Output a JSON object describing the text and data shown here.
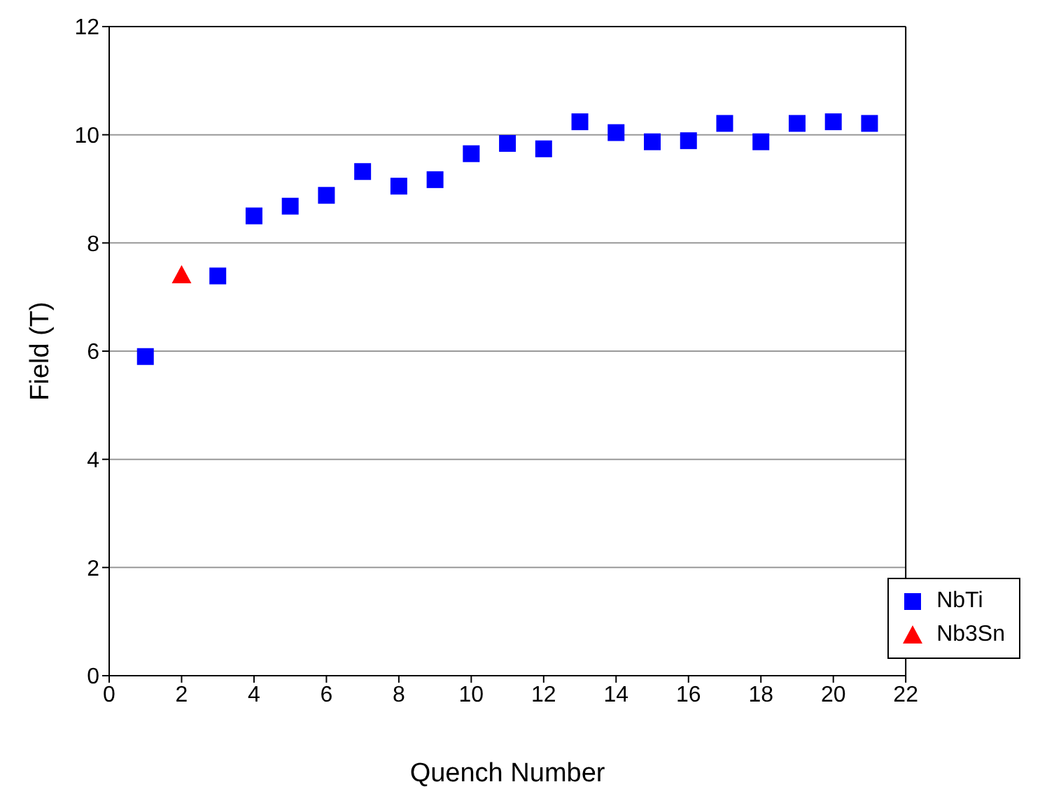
{
  "chart_data": {
    "type": "scatter",
    "xlabel": "Quench Number",
    "ylabel": "Field (T)",
    "xlim": [
      0,
      22
    ],
    "xticks": [
      0,
      2,
      4,
      6,
      8,
      10,
      12,
      14,
      16,
      18,
      20,
      22
    ],
    "ylim": [
      0,
      12
    ],
    "yticks": [
      0,
      2,
      4,
      6,
      8,
      10,
      12
    ],
    "grid": "y",
    "legend": "bottom right",
    "series": [
      {
        "name": "NbTi",
        "color": "#0000ff",
        "marker": "square",
        "x": [
          1,
          3,
          4,
          5,
          6,
          7,
          8,
          9,
          10,
          11,
          12,
          13,
          14,
          15,
          16,
          17,
          18,
          19,
          20,
          21
        ],
        "values": [
          5.9,
          7.39,
          8.5,
          8.68,
          8.88,
          9.32,
          9.05,
          9.17,
          9.65,
          9.84,
          9.74,
          10.24,
          10.04,
          9.87,
          9.89,
          10.21,
          9.87,
          10.21,
          10.24,
          10.21
        ]
      },
      {
        "name": "Nb3Sn",
        "color": "#ff0000",
        "marker": "triangle",
        "x": [
          2
        ],
        "values": [
          7.41
        ]
      }
    ]
  }
}
